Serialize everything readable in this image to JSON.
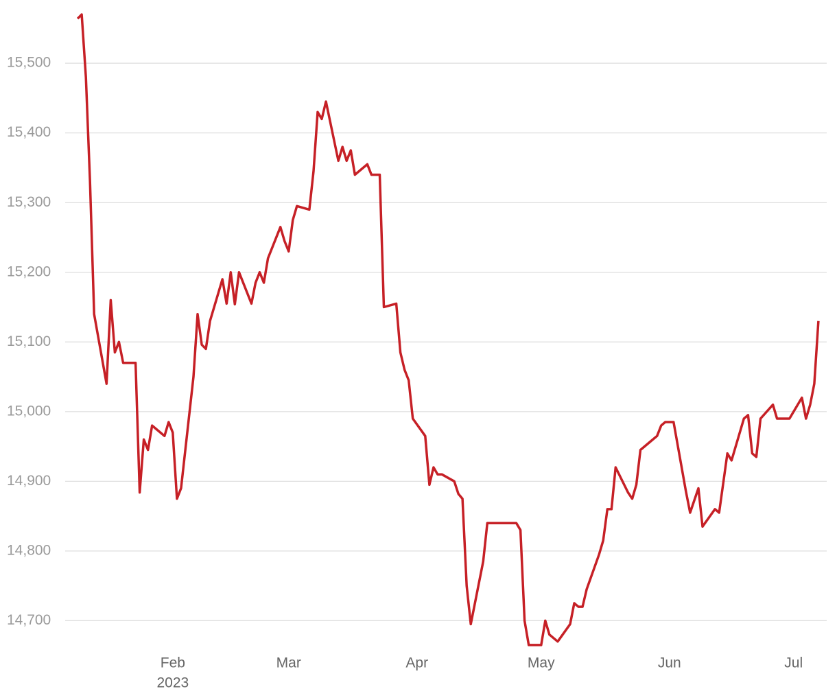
{
  "chart_data": {
    "type": "line",
    "color": "#c62026",
    "grid": true,
    "x": [
      "2023-01-09",
      "2023-01-10",
      "2023-01-11",
      "2023-01-12",
      "2023-01-13",
      "2023-01-16",
      "2023-01-17",
      "2023-01-18",
      "2023-01-19",
      "2023-01-20",
      "2023-01-23",
      "2023-01-24",
      "2023-01-25",
      "2023-01-26",
      "2023-01-27",
      "2023-01-30",
      "2023-01-31",
      "2023-02-01",
      "2023-02-02",
      "2023-02-03",
      "2023-02-06",
      "2023-02-07",
      "2023-02-08",
      "2023-02-09",
      "2023-02-10",
      "2023-02-13",
      "2023-02-14",
      "2023-02-15",
      "2023-02-16",
      "2023-02-17",
      "2023-02-20",
      "2023-02-21",
      "2023-02-22",
      "2023-02-23",
      "2023-02-24",
      "2023-02-27",
      "2023-02-28",
      "2023-03-01",
      "2023-03-02",
      "2023-03-03",
      "2023-03-06",
      "2023-03-07",
      "2023-03-08",
      "2023-03-09",
      "2023-03-10",
      "2023-03-13",
      "2023-03-14",
      "2023-03-15",
      "2023-03-16",
      "2023-03-17",
      "2023-03-20",
      "2023-03-21",
      "2023-03-23",
      "2023-03-24",
      "2023-03-27",
      "2023-03-28",
      "2023-03-29",
      "2023-03-30",
      "2023-03-31",
      "2023-04-03",
      "2023-04-04",
      "2023-04-05",
      "2023-04-06",
      "2023-04-07",
      "2023-04-10",
      "2023-04-11",
      "2023-04-12",
      "2023-04-13",
      "2023-04-14",
      "2023-04-17",
      "2023-04-18",
      "2023-04-25",
      "2023-04-26",
      "2023-04-27",
      "2023-04-28",
      "2023-05-01",
      "2023-05-02",
      "2023-05-03",
      "2023-05-05",
      "2023-05-08",
      "2023-05-09",
      "2023-05-10",
      "2023-05-11",
      "2023-05-12",
      "2023-05-15",
      "2023-05-16",
      "2023-05-17",
      "2023-05-18",
      "2023-05-19",
      "2023-05-22",
      "2023-05-23",
      "2023-05-24",
      "2023-05-25",
      "2023-05-28",
      "2023-05-29",
      "2023-05-30",
      "2023-05-31",
      "2023-06-02",
      "2023-06-05",
      "2023-06-06",
      "2023-06-08",
      "2023-06-09",
      "2023-06-12",
      "2023-06-13",
      "2023-06-15",
      "2023-06-16",
      "2023-06-19",
      "2023-06-20",
      "2023-06-21",
      "2023-06-22",
      "2023-06-23",
      "2023-06-26",
      "2023-06-27",
      "2023-06-30",
      "2023-07-03",
      "2023-07-04",
      "2023-07-05",
      "2023-07-06",
      "2023-07-07"
    ],
    "values": [
      15564,
      15570,
      15480,
      15330,
      15140,
      15040,
      15160,
      15085,
      15100,
      15070,
      15070,
      14884,
      14960,
      14945,
      14980,
      14965,
      14985,
      14970,
      14875,
      14890,
      15050,
      15140,
      15096,
      15090,
      15130,
      15190,
      15155,
      15200,
      15154,
      15200,
      15155,
      15185,
      15200,
      15185,
      15220,
      15265,
      15245,
      15230,
      15275,
      15295,
      15290,
      15345,
      15430,
      15420,
      15445,
      15360,
      15380,
      15360,
      15375,
      15340,
      15355,
      15340,
      15340,
      15150,
      15155,
      15085,
      15060,
      15045,
      14990,
      14965,
      14895,
      14920,
      14910,
      14910,
      14900,
      14882,
      14875,
      14750,
      14695,
      14785,
      14840,
      14840,
      14830,
      14700,
      14665,
      14665,
      14700,
      14680,
      14670,
      14695,
      14725,
      14720,
      14720,
      14745,
      14795,
      14815,
      14860,
      14860,
      14920,
      14884,
      14875,
      14895,
      14945,
      14960,
      14965,
      14980,
      14985,
      14985,
      14885,
      14855,
      14890,
      14835,
      14860,
      14855,
      14940,
      14930,
      14990,
      14995,
      14940,
      14935,
      14990,
      15010,
      14990,
      14990,
      15020,
      14990,
      15010,
      15040,
      15130
    ],
    "xlim": [
      "2023-01-06",
      "2023-07-09"
    ],
    "xticks": [
      {
        "value": "2023-02-01",
        "label": "Feb"
      },
      {
        "value": "2023-03-01",
        "label": "Mar"
      },
      {
        "value": "2023-04-01",
        "label": "Apr"
      },
      {
        "value": "2023-05-01",
        "label": "May"
      },
      {
        "value": "2023-06-01",
        "label": "Jun"
      },
      {
        "value": "2023-07-01",
        "label": "Jul"
      }
    ],
    "x_year_label": "2023",
    "ylim": [
      14660,
      15576
    ],
    "yticks": [
      {
        "value": 14700,
        "label": "14,700"
      },
      {
        "value": 14800,
        "label": "14,800"
      },
      {
        "value": 14900,
        "label": "14,900"
      },
      {
        "value": 15000,
        "label": "15,000"
      },
      {
        "value": 15100,
        "label": "15,100"
      },
      {
        "value": 15200,
        "label": "15,200"
      },
      {
        "value": 15300,
        "label": "15,300"
      },
      {
        "value": 15400,
        "label": "15,400"
      },
      {
        "value": 15500,
        "label": "15,500"
      }
    ]
  }
}
